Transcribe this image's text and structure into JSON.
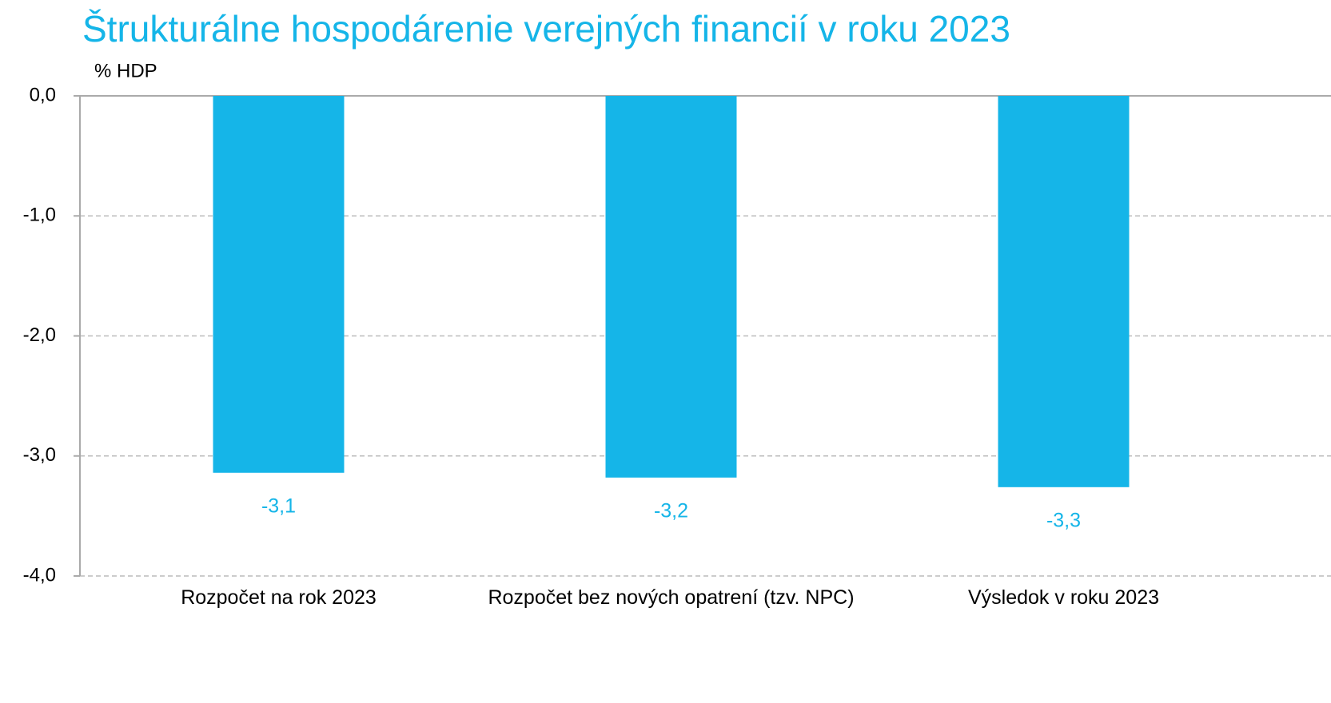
{
  "chart_data": {
    "type": "bar",
    "title": "Štrukturálne hospodárenie verejných financií v roku 2023",
    "y_label": "% HDP",
    "categories": [
      "Rozpočet na rok 2023",
      "Rozpočet bez nových opatrení (tzv. NPC)",
      "Výsledok v roku 2023"
    ],
    "values": [
      -3.14,
      -3.18,
      -3.26
    ],
    "value_labels": [
      "-3,1",
      "-3,2",
      "-3,3"
    ],
    "color": "#15b5e8",
    "ylim": [
      -4,
      0
    ],
    "yticks": [
      {
        "value": 0,
        "label": "0,0"
      },
      {
        "value": -1,
        "label": "-1,0"
      },
      {
        "value": -2,
        "label": "-2,0"
      },
      {
        "value": -3,
        "label": "-3,0"
      },
      {
        "value": -4,
        "label": "-4,0"
      }
    ],
    "grid": true
  }
}
